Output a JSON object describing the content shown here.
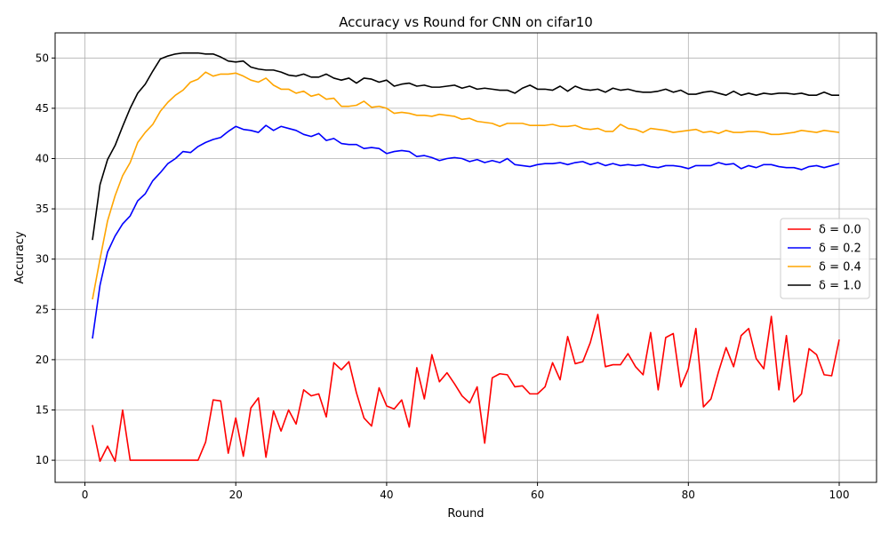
{
  "chart_data": {
    "type": "line",
    "title": "Accuracy vs Round for CNN on cifar10",
    "xlabel": "Round",
    "ylabel": "Accuracy",
    "xlim": [
      -3.95,
      104.95
    ],
    "ylim": [
      7.8,
      52.5
    ],
    "xticks": [
      0,
      20,
      40,
      60,
      80,
      100
    ],
    "yticks": [
      10,
      15,
      20,
      25,
      30,
      35,
      40,
      45,
      50
    ],
    "grid": true,
    "legend_position": "center-right",
    "series": [
      {
        "name": "δ = 0.0",
        "color": "#ff0000",
        "values": [
          13.5,
          9.9,
          11.4,
          9.9,
          15.0,
          10.0,
          10.0,
          10.0,
          10.0,
          10.0,
          10.0,
          10.0,
          10.0,
          10.0,
          10.0,
          11.8,
          16.0,
          15.9,
          10.7,
          14.2,
          10.4,
          15.2,
          16.2,
          10.3,
          14.9,
          12.9,
          15.0,
          13.6,
          17.0,
          16.4,
          16.6,
          14.3,
          19.7,
          19.0,
          19.8,
          16.7,
          14.2,
          13.4,
          17.2,
          15.4,
          15.1,
          16.0,
          13.3,
          19.2,
          16.1,
          20.5,
          17.8,
          18.7,
          17.6,
          16.4,
          15.7,
          17.3,
          11.7,
          18.2,
          18.6,
          18.5,
          17.3,
          17.4,
          16.6,
          16.6,
          17.3,
          19.7,
          18.0,
          22.3,
          19.6,
          19.8,
          21.7,
          24.5,
          19.3,
          19.5,
          19.5,
          20.6,
          19.3,
          18.5,
          22.7,
          17.0,
          22.2,
          22.6,
          17.3,
          19.1,
          23.1,
          15.3,
          16.1,
          18.8,
          21.2,
          19.3,
          22.4,
          23.1,
          20.1,
          19.1,
          24.3,
          17.0,
          22.4,
          15.8,
          16.6,
          21.1,
          20.5,
          18.5,
          18.4,
          22.0
        ]
      },
      {
        "name": "δ = 0.2",
        "color": "#0000ff",
        "values": [
          22.1,
          27.4,
          30.7,
          32.3,
          33.5,
          34.3,
          35.8,
          36.5,
          37.8,
          38.6,
          39.5,
          40.0,
          40.7,
          40.6,
          41.2,
          41.6,
          41.9,
          42.1,
          42.7,
          43.2,
          42.9,
          42.8,
          42.6,
          43.3,
          42.8,
          43.2,
          43.0,
          42.8,
          42.4,
          42.2,
          42.5,
          41.8,
          42.0,
          41.5,
          41.4,
          41.4,
          41.0,
          41.1,
          41.0,
          40.5,
          40.7,
          40.8,
          40.7,
          40.2,
          40.3,
          40.1,
          39.8,
          40.0,
          40.1,
          40.0,
          39.7,
          39.9,
          39.6,
          39.8,
          39.6,
          40.0,
          39.4,
          39.3,
          39.2,
          39.4,
          39.5,
          39.5,
          39.6,
          39.4,
          39.6,
          39.7,
          39.4,
          39.6,
          39.3,
          39.5,
          39.3,
          39.4,
          39.3,
          39.4,
          39.2,
          39.1,
          39.3,
          39.3,
          39.2,
          39.0,
          39.3,
          39.3,
          39.3,
          39.6,
          39.4,
          39.5,
          39.0,
          39.3,
          39.1,
          39.4,
          39.4,
          39.2,
          39.1,
          39.1,
          38.9,
          39.2,
          39.3,
          39.1,
          39.3,
          39.5
        ]
      },
      {
        "name": "δ = 0.4",
        "color": "#ffa500",
        "values": [
          26.0,
          30.0,
          33.8,
          36.3,
          38.3,
          39.6,
          41.6,
          42.6,
          43.4,
          44.7,
          45.6,
          46.3,
          46.8,
          47.6,
          47.9,
          48.6,
          48.2,
          48.4,
          48.4,
          48.5,
          48.2,
          47.8,
          47.6,
          48.0,
          47.3,
          46.9,
          46.9,
          46.5,
          46.7,
          46.2,
          46.4,
          45.9,
          46.0,
          45.2,
          45.2,
          45.3,
          45.7,
          45.1,
          45.2,
          45.0,
          44.5,
          44.6,
          44.5,
          44.3,
          44.3,
          44.2,
          44.4,
          44.3,
          44.2,
          43.9,
          44.0,
          43.7,
          43.6,
          43.5,
          43.2,
          43.5,
          43.5,
          43.5,
          43.3,
          43.3,
          43.3,
          43.4,
          43.2,
          43.2,
          43.3,
          43.0,
          42.9,
          43.0,
          42.7,
          42.7,
          43.4,
          43.0,
          42.9,
          42.6,
          43.0,
          42.9,
          42.8,
          42.6,
          42.7,
          42.8,
          42.9,
          42.6,
          42.7,
          42.5,
          42.8,
          42.6,
          42.6,
          42.7,
          42.7,
          42.6,
          42.4,
          42.4,
          42.5,
          42.6,
          42.8,
          42.7,
          42.6,
          42.8,
          42.7,
          42.6
        ]
      },
      {
        "name": "δ = 1.0",
        "color": "#000000",
        "values": [
          31.9,
          37.4,
          39.9,
          41.3,
          43.2,
          45.0,
          46.5,
          47.4,
          48.7,
          49.9,
          50.2,
          50.4,
          50.5,
          50.5,
          50.5,
          50.4,
          50.4,
          50.1,
          49.7,
          49.6,
          49.7,
          49.1,
          48.9,
          48.8,
          48.8,
          48.6,
          48.3,
          48.2,
          48.4,
          48.1,
          48.1,
          48.4,
          48.0,
          47.8,
          48.0,
          47.5,
          48.0,
          47.9,
          47.6,
          47.8,
          47.2,
          47.4,
          47.5,
          47.2,
          47.3,
          47.1,
          47.1,
          47.2,
          47.3,
          47.0,
          47.2,
          46.9,
          47.0,
          46.9,
          46.8,
          46.8,
          46.5,
          47.0,
          47.3,
          46.9,
          46.9,
          46.8,
          47.2,
          46.7,
          47.2,
          46.9,
          46.8,
          46.9,
          46.6,
          47.0,
          46.8,
          46.9,
          46.7,
          46.6,
          46.6,
          46.7,
          46.9,
          46.6,
          46.8,
          46.4,
          46.4,
          46.6,
          46.7,
          46.5,
          46.3,
          46.7,
          46.3,
          46.5,
          46.3,
          46.5,
          46.4,
          46.5,
          46.5,
          46.4,
          46.5,
          46.3,
          46.3,
          46.6,
          46.3,
          46.3
        ]
      }
    ]
  }
}
